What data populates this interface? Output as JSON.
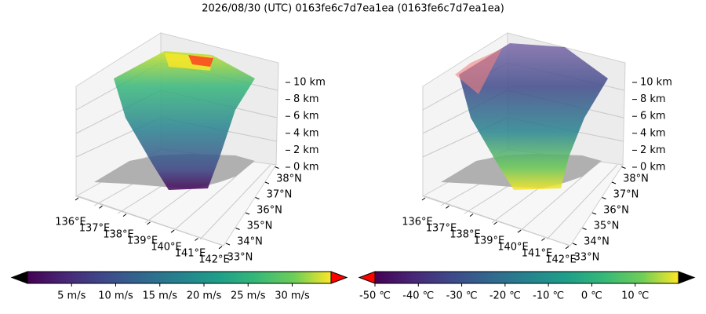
{
  "title": "2026/08/30 (UTC) 0163fe6c7d7ea1ea (0163fe6c7d7ea1ea)",
  "panels": [
    {
      "type": "scatter3d",
      "xticks": [
        {
          "value": 136,
          "label": "136°E"
        },
        {
          "value": 137,
          "label": "137°E"
        },
        {
          "value": 138,
          "label": "138°E"
        },
        {
          "value": 139,
          "label": "139°E"
        },
        {
          "value": 140,
          "label": "140°E"
        },
        {
          "value": 141,
          "label": "141°E"
        },
        {
          "value": 142,
          "label": "142°E"
        }
      ],
      "yticks": [
        {
          "value": 33,
          "label": "33°N"
        },
        {
          "value": 34,
          "label": "34°N"
        },
        {
          "value": 35,
          "label": "35°N"
        },
        {
          "value": 36,
          "label": "36°N"
        },
        {
          "value": 37,
          "label": "37°N"
        },
        {
          "value": 38,
          "label": "38°N"
        }
      ],
      "zticks": [
        {
          "value": 0,
          "label": "0 km"
        },
        {
          "value": 2,
          "label": "2 km"
        },
        {
          "value": 4,
          "label": "4 km"
        },
        {
          "value": 6,
          "label": "6 km"
        },
        {
          "value": 8,
          "label": "8 km"
        },
        {
          "value": 10,
          "label": "10 km"
        }
      ],
      "colorbar": {
        "colormap": "viridis",
        "lim": [
          0,
          34.4
        ],
        "under_color": "#000000",
        "over_color": "#ff0000",
        "ticks": [
          {
            "value": 5,
            "label": "5 m/s"
          },
          {
            "value": 10,
            "label": "10 m/s"
          },
          {
            "value": 15,
            "label": "15 m/s"
          },
          {
            "value": 20,
            "label": "20 m/s"
          },
          {
            "value": 25,
            "label": "25 m/s"
          },
          {
            "value": 30,
            "label": "30 m/s"
          }
        ]
      }
    },
    {
      "type": "scatter3d",
      "xticks": [
        {
          "value": 136,
          "label": "136°E"
        },
        {
          "value": 137,
          "label": "137°E"
        },
        {
          "value": 138,
          "label": "138°E"
        },
        {
          "value": 139,
          "label": "139°E"
        },
        {
          "value": 140,
          "label": "140°E"
        },
        {
          "value": 141,
          "label": "141°E"
        },
        {
          "value": 142,
          "label": "142°E"
        }
      ],
      "yticks": [
        {
          "value": 33,
          "label": "33°N"
        },
        {
          "value": 34,
          "label": "34°N"
        },
        {
          "value": 35,
          "label": "35°N"
        },
        {
          "value": 36,
          "label": "36°N"
        },
        {
          "value": 37,
          "label": "37°N"
        },
        {
          "value": 38,
          "label": "38°N"
        }
      ],
      "zticks": [
        {
          "value": 0,
          "label": "0 km"
        },
        {
          "value": 2,
          "label": "2 km"
        },
        {
          "value": 4,
          "label": "4 km"
        },
        {
          "value": 6,
          "label": "6 km"
        },
        {
          "value": 8,
          "label": "8 km"
        },
        {
          "value": 10,
          "label": "10 km"
        }
      ],
      "colorbar": {
        "colormap": "viridis",
        "lim": [
          -50,
          20
        ],
        "under_color": "#ff0000",
        "over_color": "#000000",
        "ticks": [
          {
            "value": -50,
            "label": "-50 ℃"
          },
          {
            "value": -40,
            "label": "-40 ℃"
          },
          {
            "value": -30,
            "label": "-30 ℃"
          },
          {
            "value": -20,
            "label": "-20 ℃"
          },
          {
            "value": -10,
            "label": "-10 ℃"
          },
          {
            "value": 0,
            "label": "0 ℃"
          },
          {
            "value": 10,
            "label": "10 ℃"
          }
        ]
      }
    }
  ]
}
